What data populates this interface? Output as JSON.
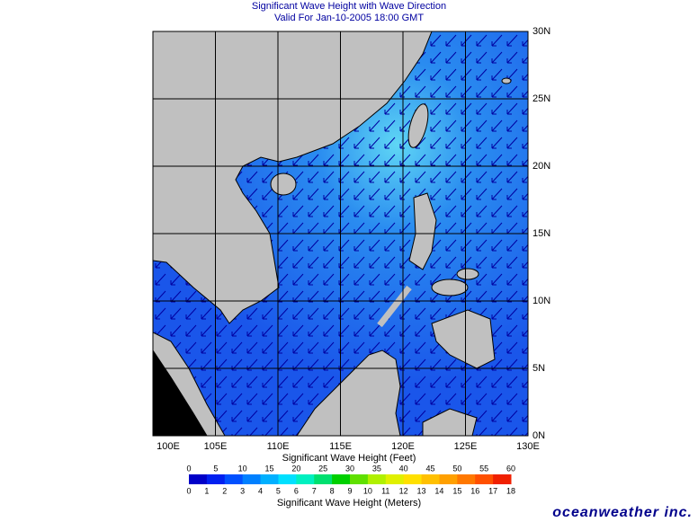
{
  "header": {
    "title": "Significant Wave Height with Wave Direction",
    "subtitle": "Valid For Jan-10-2005 18:00 GMT"
  },
  "map": {
    "lon_labels": [
      "100E",
      "105E",
      "110E",
      "115E",
      "120E",
      "125E",
      "130E"
    ],
    "lat_labels": [
      "30N",
      "25N",
      "20N",
      "15N",
      "10N",
      "5N",
      "0N"
    ]
  },
  "legend": {
    "feet_title": "Significant Wave Height (Feet)",
    "feet_labels": [
      0,
      5,
      10,
      15,
      20,
      25,
      30,
      35,
      40,
      45,
      50,
      55,
      60
    ],
    "meters_labels": [
      0,
      1,
      2,
      3,
      4,
      5,
      6,
      7,
      8,
      9,
      10,
      11,
      12,
      13,
      14,
      15,
      16,
      17,
      18
    ],
    "meters_title": "Significant Wave Height (Meters)"
  },
  "logo": "oceanweather inc."
}
